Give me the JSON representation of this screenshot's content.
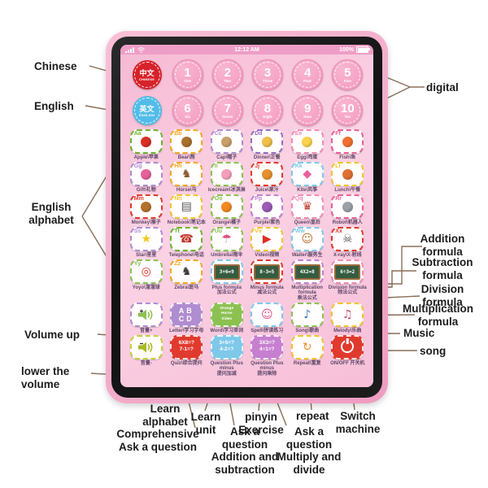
{
  "annotations": {
    "chinese": {
      "text": "Chinese"
    },
    "english": {
      "text": "English"
    },
    "english_alphabet": {
      "text": "English alphabet"
    },
    "volume_up": {
      "text": "Volume up"
    },
    "lower_volume": {
      "text": "lower the volume"
    },
    "digital": {
      "text": "digital"
    },
    "addition_formula": {
      "text": "Addition formula"
    },
    "subtraction_formula": {
      "text": "Subtraction formula"
    },
    "division_formula": {
      "text": "Division formula"
    },
    "multiplication_formula": {
      "text": "Multiplication formula"
    },
    "music": {
      "text": "Music"
    },
    "song": {
      "text": "song"
    },
    "learn_alphabet": {
      "text": "Learn alphabet"
    },
    "comprehensive": {
      "text": "Comprehensive Ask a question"
    },
    "learn_unit": {
      "text": "Learn unit"
    },
    "ask_addition": {
      "text": "Ask a question Addition and subtraction"
    },
    "pinyin": {
      "text": "pinyin Exercise"
    },
    "ask_multiply": {
      "text": "Ask a question Multiply and divide"
    },
    "repeat": {
      "text": "repeat"
    },
    "switch_machine": {
      "text": "Switch machine"
    }
  },
  "colors": {
    "shell_pink": "#ef9cc0",
    "screen_pink": "#f9c6da",
    "statusbar_pink": "#ee9ec6",
    "chinese_red": "#d6222a",
    "english_blue": "#52bce8",
    "callout_line": "#8a6e58"
  },
  "tablet": {
    "status_bar": {
      "signal": "ull",
      "time": "12:12 AM",
      "battery": "100%"
    },
    "lang": {
      "zh": {
        "top": "中文",
        "bottom": "CHINESE",
        "color": "#d6222a"
      },
      "en": {
        "top": "英文",
        "bottom": "ENGLISH",
        "color": "#52bce8"
      }
    },
    "numbers": [
      {
        "digit": "1",
        "word": "One"
      },
      {
        "digit": "2",
        "word": "Two"
      },
      {
        "digit": "3",
        "word": "Three"
      },
      {
        "digit": "4",
        "word": "Four"
      },
      {
        "digit": "5",
        "word": "Five"
      },
      {
        "digit": "6",
        "word": "Six"
      },
      {
        "digit": "7",
        "word": "Seven"
      },
      {
        "digit": "8",
        "word": "Eight"
      },
      {
        "digit": "9",
        "word": "Nine"
      },
      {
        "digit": "10",
        "word": "Ten"
      }
    ],
    "grid": [
      {
        "name": "tile-apple",
        "type": "letter",
        "letter": "Aa",
        "caption": "Apple\\苹果",
        "color": "#6cb52e",
        "blob": "#d93025",
        "icon": "apple-icon"
      },
      {
        "name": "tile-bear",
        "type": "letter",
        "letter": "Bb",
        "caption": "Bear\\熊",
        "color": "#f5a623",
        "blob": "#a9712c",
        "icon": "bear-icon"
      },
      {
        "name": "tile-cap",
        "type": "letter",
        "letter": "Cc",
        "caption": "Cap\\帽子",
        "color": "#b08cd0",
        "blob": "#c9a06a",
        "icon": "cap-icon"
      },
      {
        "name": "tile-dinner",
        "type": "letter",
        "letter": "Dd",
        "caption": "Dinner\\正餐",
        "color": "#9b6bc3",
        "blob": "#f0c04a",
        "icon": "dinner-icon"
      },
      {
        "name": "tile-egg",
        "type": "letter",
        "letter": "Ee",
        "caption": "Egg\\鸡蛋",
        "color": "#f08cb4",
        "blob": "#ffd24d",
        "icon": "egg-icon"
      },
      {
        "name": "tile-fish",
        "type": "letter",
        "letter": "Ff",
        "caption": "Fish\\鱼",
        "color": "#e8609a",
        "blob": "#f07030",
        "icon": "fish-icon"
      },
      {
        "name": "tile-gift",
        "type": "letter",
        "letter": "Gg",
        "caption": "Gift\\礼物",
        "color": "#b08cd0",
        "blob": "#e8609a",
        "icon": "gift-icon"
      },
      {
        "name": "tile-horse",
        "type": "letter",
        "letter": "Hh",
        "caption": "Horse\\马",
        "color": "#f5a623",
        "glyph": "♞",
        "glyph_color": "#8a5a2b",
        "icon": "horse-icon"
      },
      {
        "name": "tile-icecream",
        "type": "letter",
        "letter": "Ii",
        "caption": "Icecream\\冰淇淋",
        "color": "#8cc152",
        "blob": "#f4a0bc",
        "icon": "icecream-icon"
      },
      {
        "name": "tile-juice",
        "type": "letter",
        "letter": "Jj",
        "caption": "Juice\\果汁",
        "color": "#e03a2e",
        "blob": "#e8902e",
        "icon": "juice-icon"
      },
      {
        "name": "tile-kite",
        "type": "letter",
        "letter": "Kk",
        "caption": "Kite\\风筝",
        "color": "#7ec8ea",
        "glyph": "◆",
        "glyph_color": "#e8609a",
        "icon": "kite-icon"
      },
      {
        "name": "tile-lunch",
        "type": "letter",
        "letter": "Ll",
        "caption": "Lunch\\午餐",
        "color": "#f2c52f",
        "blob": "#e07030",
        "icon": "lunch-icon"
      },
      {
        "name": "tile-monkey",
        "type": "letter",
        "letter": "Mm",
        "caption": "Monkey\\猴子",
        "color": "#e03a2e",
        "blob": "#b5722e",
        "icon": "monkey-icon"
      },
      {
        "name": "tile-notebook",
        "type": "letter",
        "letter": "Nn",
        "caption": "Notebook\\笔记本",
        "color": "#f2c52f",
        "glyph": "▤",
        "glyph_color": "#555555",
        "icon": "notebook-icon"
      },
      {
        "name": "tile-orange",
        "type": "letter",
        "letter": "Oo",
        "caption": "Orange\\橘子",
        "color": "#8cc152",
        "blob": "#f08a1e",
        "icon": "orange-icon"
      },
      {
        "name": "tile-purple",
        "type": "letter",
        "letter": "Pp",
        "caption": "Purple\\紫色",
        "color": "#c77fd0",
        "blob": "#9b59b6",
        "icon": "purple-icon"
      },
      {
        "name": "tile-queen",
        "type": "letter",
        "letter": "Qq",
        "caption": "Queen\\皇后",
        "color": "#f08cb4",
        "glyph": "♛",
        "glyph_color": "#c0392b",
        "icon": "queen-icon"
      },
      {
        "name": "tile-robot",
        "type": "letter",
        "letter": "Rr",
        "caption": "Robot\\机器人",
        "color": "#e8609a",
        "blob": "#9aa0a6",
        "icon": "robot-icon"
      },
      {
        "name": "tile-star",
        "type": "letter",
        "letter": "Ss",
        "caption": "Star\\星星",
        "color": "#b08cd0",
        "glyph": "★",
        "glyph_color": "#f5c518",
        "icon": "star-icon"
      },
      {
        "name": "tile-telephone",
        "type": "letter",
        "letter": "Tt",
        "caption": "Telephone\\电话",
        "color": "#6cb52e",
        "glyph": "☎",
        "glyph_color": "#c0392b",
        "icon": "telephone-icon"
      },
      {
        "name": "tile-umbrella",
        "type": "letter",
        "letter": "Uu",
        "caption": "Umbrella\\雨伞",
        "color": "#8cc152",
        "glyph": "☂",
        "glyph_color": "#e05080",
        "icon": "umbrella-icon"
      },
      {
        "name": "tile-video",
        "type": "letter",
        "letter": "Vv",
        "caption": "Video\\视频",
        "color": "#f2c52f",
        "glyph": "▶",
        "glyph_color": "#d93025",
        "icon": "video-icon"
      },
      {
        "name": "tile-waiter",
        "type": "letter",
        "letter": "Ww",
        "caption": "Waiter\\服务生",
        "color": "#7ec8ea",
        "glyph": "☺",
        "glyph_color": "#b5722e",
        "icon": "waiter-icon"
      },
      {
        "name": "tile-xray",
        "type": "letter",
        "letter": "Xx",
        "caption": "X-ray\\X-射线",
        "color": "#e03a2e",
        "glyph": "☠",
        "glyph_color": "#555555",
        "icon": "xray-icon"
      },
      {
        "name": "tile-yoyo",
        "type": "letter",
        "letter": "Yy",
        "caption": "Yoyo\\溜溜球",
        "color": "#8cc152",
        "glyph": "◎",
        "glyph_color": "#d93025",
        "icon": "yoyo-icon"
      },
      {
        "name": "tile-zebra",
        "type": "letter",
        "letter": "Zz",
        "caption": "Zebra\\斑马",
        "color": "#f5a623",
        "glyph": "♞",
        "glyph_color": "#3a3a3a",
        "icon": "zebra-icon"
      },
      {
        "name": "tile-plus-formula",
        "type": "formula",
        "caption": "Plus formula\n加法公式",
        "color": "#7ec8ea",
        "board": "3+6=9"
      },
      {
        "name": "tile-minus-formula",
        "type": "formula",
        "caption": "Minus formula\n减法公式",
        "color": "#e03a2e",
        "board": "8-3=5"
      },
      {
        "name": "tile-multiplication-formula",
        "type": "formula",
        "caption": "Multiplication formula\n乘法公式",
        "color": "#c77fd0",
        "board": "4X2=8"
      },
      {
        "name": "tile-division-formula",
        "type": "formula",
        "caption": "Division formula\n除法公式",
        "color": "#f08cb4",
        "board": "6÷3=2"
      },
      {
        "name": "volume-up-button",
        "type": "volume",
        "sign": "+",
        "caption": "音量+",
        "color": "#b08cd0",
        "spk": "#8cc152",
        "icon": "speaker-plus-icon"
      },
      {
        "name": "tile-letter",
        "type": "lines",
        "cls": "abcd",
        "caption": "Letter\\学习字母",
        "color": "#b08cd0",
        "lines": [
          "AB",
          "CD"
        ]
      },
      {
        "name": "tile-word",
        "type": "lines",
        "cls": "words",
        "caption": "Word\\学习单词",
        "color": "#8cc152",
        "lines": [
          "Orange",
          "Horse",
          "Video"
        ]
      },
      {
        "name": "tile-spell",
        "type": "letter",
        "letter": "",
        "caption": "Spell\\拼读练习",
        "color": "#7ec8ea",
        "glyph": "☺",
        "glyph_color": "#e05080",
        "icon": "child-icon"
      },
      {
        "name": "tile-song",
        "type": "letter",
        "letter": "",
        "caption": "Song\\歌曲",
        "color": "#8cc152",
        "glyph": "♪",
        "glyph_color": "#3a78c2",
        "icon": "music-note-icon"
      },
      {
        "name": "tile-melody",
        "type": "letter",
        "letter": "",
        "caption": "Melody\\乐曲",
        "color": "#f2c52f",
        "glyph": "♫",
        "glyph_color": "#c2527a",
        "icon": "melody-icon"
      },
      {
        "name": "volume-down-button",
        "type": "volume",
        "sign": "-",
        "caption": "音量-",
        "color": "#c3d13a",
        "spk": "#a8b820",
        "icon": "speaker-minus-icon"
      },
      {
        "name": "tile-quiz",
        "type": "lines",
        "cls": "quiz",
        "caption": "Quiz\\综合提问",
        "color": "#e03a2e",
        "lines": [
          "6X8=?",
          "7-1=?"
        ]
      },
      {
        "name": "tile-question-plus-minus",
        "type": "lines",
        "cls": "quiz",
        "caption": "Question Plus minus\n提问加减",
        "color": "#7ec8ea",
        "lines": [
          "3+5=?",
          "4-2=?"
        ]
      },
      {
        "name": "tile-question-multiply-divide",
        "type": "lines",
        "cls": "quiz",
        "caption": "Question Plus minus\n提问乘除",
        "color": "#c77fd0",
        "lines": [
          "3X3=?",
          "4÷1=?"
        ]
      },
      {
        "name": "repeat-button",
        "type": "letter",
        "letter": "",
        "caption": "Repeat\\重复",
        "color": "#f2c52f",
        "glyph": "↻",
        "glyph_color": "#e8902e",
        "icon": "repeat-icon"
      },
      {
        "name": "power-button",
        "type": "power",
        "caption": "ON/OFF 开关机",
        "color": "#e03a2e"
      }
    ]
  }
}
